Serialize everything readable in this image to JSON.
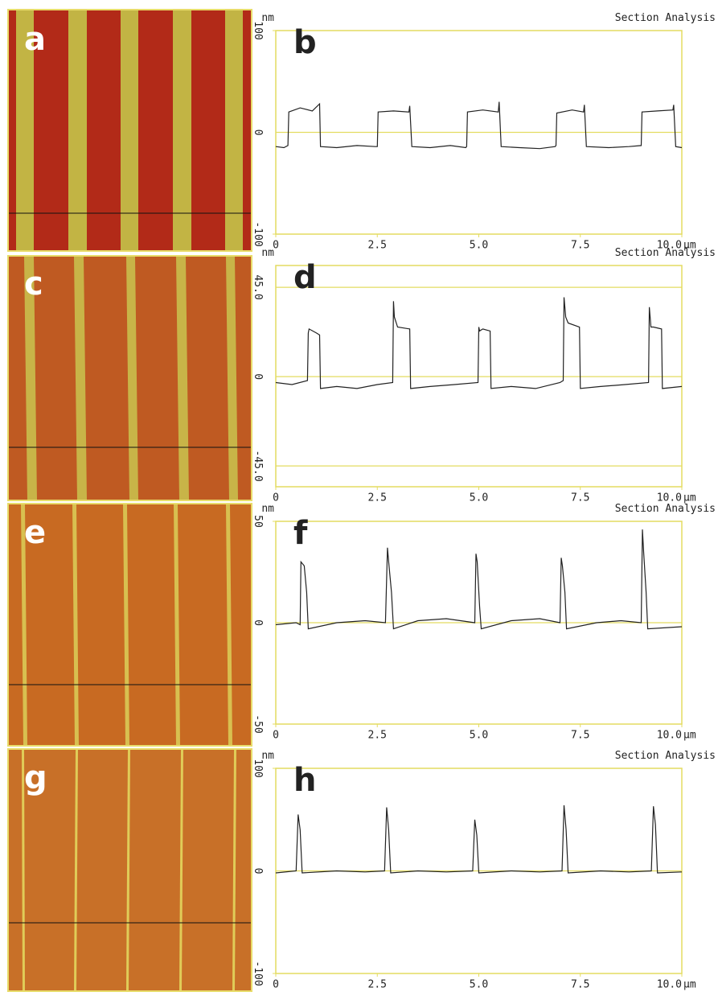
{
  "images": [
    {
      "label": "a"
    },
    {
      "label": "c"
    },
    {
      "label": "e"
    },
    {
      "label": "g"
    }
  ],
  "chart_data": [
    {
      "type": "line",
      "panel_label": "b",
      "title": "Section Analysis",
      "y_unit": "nm",
      "x_unit": "µm",
      "color": "#222222",
      "xlim": [
        0,
        10
      ],
      "xticks": [
        0,
        2.5,
        {
          "value": 5,
          "label": "5.0"
        },
        7.5,
        {
          "value": 10,
          "label": "10.0"
        }
      ],
      "ylim": [
        -100,
        100
      ],
      "yticks": [
        -100,
        0,
        100
      ],
      "x": [
        0,
        0.2,
        0.3,
        0.32,
        0.6,
        0.9,
        1.08,
        1.1,
        1.5,
        2.0,
        2.45,
        2.5,
        2.52,
        2.9,
        3.28,
        3.3,
        3.35,
        3.8,
        4.3,
        4.68,
        4.7,
        4.72,
        5.1,
        5.48,
        5.5,
        5.55,
        6.0,
        6.5,
        6.88,
        6.9,
        6.92,
        7.3,
        7.58,
        7.6,
        7.65,
        8.2,
        8.7,
        9.0,
        9.02,
        9.4,
        9.78,
        9.8,
        9.85,
        10
      ],
      "values": [
        -14,
        -15,
        -13,
        20,
        24,
        21,
        28,
        -14,
        -15,
        -13,
        -14,
        -14,
        20,
        21,
        20,
        26,
        -14,
        -15,
        -13,
        -15,
        -14,
        20,
        22,
        20,
        30,
        -14,
        -15,
        -16,
        -14,
        -13,
        19,
        22,
        20,
        27,
        -14,
        -15,
        -14,
        -13,
        20,
        21,
        22,
        27,
        -14,
        -15
      ]
    },
    {
      "type": "line",
      "panel_label": "d",
      "title": "Section Analysis",
      "y_unit": "nm",
      "x_unit": "µm",
      "color": "#222222",
      "xlim": [
        0,
        10
      ],
      "xticks": [
        0,
        2.5,
        {
          "value": 5,
          "label": "5.0"
        },
        7.5,
        {
          "value": 10,
          "label": "10.0"
        }
      ],
      "ylim": [
        -55.5,
        56
      ],
      "yticks": [
        {
          "value": -45,
          "label": "-45.0"
        },
        0,
        {
          "value": 45,
          "label": "45.0"
        }
      ],
      "x": [
        0,
        0.4,
        0.78,
        0.8,
        0.82,
        1.0,
        1.08,
        1.1,
        1.5,
        2.0,
        2.5,
        2.88,
        2.9,
        2.92,
        3.0,
        3.3,
        3.32,
        3.8,
        4.4,
        4.98,
        5.0,
        5.02,
        5.1,
        5.28,
        5.3,
        5.8,
        6.4,
        7.0,
        7.08,
        7.1,
        7.14,
        7.2,
        7.48,
        7.5,
        8.0,
        8.6,
        9.18,
        9.2,
        9.24,
        9.3,
        9.5,
        9.52,
        10
      ],
      "values": [
        -3,
        -4,
        -2,
        22,
        24,
        22,
        21,
        -6,
        -5,
        -6,
        -4,
        -3,
        38,
        30,
        25,
        24,
        -6,
        -5,
        -4,
        -3,
        25,
        23,
        24,
        23,
        -6,
        -5,
        -6,
        -3,
        -2,
        40,
        30,
        27,
        25,
        -6,
        -5,
        -4,
        -3,
        35,
        25,
        25,
        24,
        -6,
        -5
      ]
    },
    {
      "type": "line",
      "panel_label": "f",
      "title": "Section Analysis",
      "y_unit": "nm",
      "x_unit": "µm",
      "color": "#222222",
      "xlim": [
        0,
        10
      ],
      "xticks": [
        0,
        2.5,
        {
          "value": 5,
          "label": "5.0"
        },
        7.5,
        {
          "value": 10,
          "label": "10.0"
        }
      ],
      "ylim": [
        -50,
        50
      ],
      "yticks": [
        -50,
        0,
        50
      ],
      "x": [
        0,
        0.5,
        0.6,
        0.62,
        0.7,
        0.76,
        0.8,
        1.5,
        2.2,
        2.7,
        2.75,
        2.78,
        2.85,
        2.9,
        3.5,
        4.2,
        4.9,
        4.93,
        4.96,
        5.02,
        5.06,
        5.8,
        6.5,
        7.0,
        7.03,
        7.06,
        7.12,
        7.16,
        7.9,
        8.5,
        9.0,
        9.03,
        9.06,
        9.12,
        9.16,
        10
      ],
      "values": [
        -1,
        0,
        -1,
        30,
        28,
        15,
        -3,
        0,
        1,
        0,
        37,
        30,
        15,
        -3,
        1,
        2,
        0,
        34,
        30,
        8,
        -3,
        1,
        2,
        0,
        32,
        28,
        15,
        -3,
        0,
        1,
        0,
        46,
        35,
        15,
        -3,
        -2
      ]
    },
    {
      "type": "line",
      "panel_label": "h",
      "title": "Section Analysis",
      "y_unit": "nm",
      "x_unit": "µm",
      "color": "#222222",
      "xlim": [
        0,
        10
      ],
      "xticks": [
        0,
        2.5,
        {
          "value": 5,
          "label": "5.0"
        },
        7.5,
        {
          "value": 10,
          "label": "10.0"
        }
      ],
      "ylim": [
        -100,
        100
      ],
      "yticks": [
        -100,
        0,
        100
      ],
      "x": [
        0,
        0.5,
        0.55,
        0.6,
        0.65,
        1.5,
        2.2,
        2.68,
        2.73,
        2.78,
        2.83,
        3.5,
        4.2,
        4.85,
        4.9,
        4.95,
        5.0,
        5.8,
        6.5,
        7.05,
        7.1,
        7.15,
        7.2,
        8.0,
        8.7,
        9.25,
        9.3,
        9.35,
        9.4,
        10
      ],
      "values": [
        -2,
        0,
        55,
        40,
        -2,
        0,
        -1,
        0,
        62,
        40,
        -2,
        0,
        -1,
        0,
        50,
        35,
        -2,
        0,
        -1,
        0,
        64,
        40,
        -2,
        0,
        -1,
        0,
        63,
        45,
        -2,
        -1
      ]
    }
  ]
}
